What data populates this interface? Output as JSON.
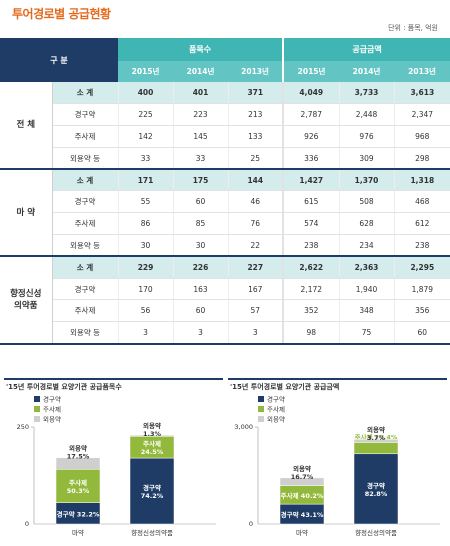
{
  "title": "투어경로별 공급현황",
  "unit": "단위 : 품목, 억원",
  "table": {
    "header_category": "구 분",
    "header_items": "품목수",
    "header_amount": "공급금액",
    "years_items": [
      "2015년",
      "2014년",
      "2013년"
    ],
    "years_amount": [
      "2015년",
      "2014년",
      "2013년"
    ],
    "groups": [
      {
        "name": "전 체",
        "rows": [
          {
            "label": "소 계",
            "total": true,
            "values": [
              "400",
              "401",
              "371",
              "4,049",
              "3,733",
              "3,613"
            ]
          },
          {
            "label": "경구약",
            "values": [
              "225",
              "223",
              "213",
              "2,787",
              "2,448",
              "2,347"
            ]
          },
          {
            "label": "주사제",
            "values": [
              "142",
              "145",
              "133",
              "926",
              "976",
              "968"
            ]
          },
          {
            "label": "외용약 등",
            "values": [
              "33",
              "33",
              "25",
              "336",
              "309",
              "298"
            ]
          }
        ]
      },
      {
        "name": "마 약",
        "rows": [
          {
            "label": "소 계",
            "total": true,
            "values": [
              "171",
              "175",
              "144",
              "1,427",
              "1,370",
              "1,318"
            ]
          },
          {
            "label": "경구약",
            "values": [
              "55",
              "60",
              "46",
              "615",
              "508",
              "468"
            ]
          },
          {
            "label": "주사제",
            "values": [
              "86",
              "85",
              "76",
              "574",
              "628",
              "612"
            ]
          },
          {
            "label": "외용약 등",
            "values": [
              "30",
              "30",
              "22",
              "238",
              "234",
              "238"
            ]
          }
        ]
      },
      {
        "name": "향정신성\n의약품",
        "rows": [
          {
            "label": "소 계",
            "total": true,
            "values": [
              "229",
              "226",
              "227",
              "2,622",
              "2,363",
              "2,295"
            ]
          },
          {
            "label": "경구약",
            "values": [
              "170",
              "163",
              "167",
              "2,172",
              "1,940",
              "1,879"
            ]
          },
          {
            "label": "주사제",
            "values": [
              "56",
              "60",
              "57",
              "352",
              "348",
              "356"
            ]
          },
          {
            "label": "외용약 등",
            "values": [
              "3",
              "3",
              "3",
              "98",
              "75",
              "60"
            ]
          }
        ]
      }
    ]
  },
  "colors": {
    "oral": "#1f3c66",
    "injection": "#93b93c",
    "external": "#cfcfcf",
    "teal": "#3fb6b4",
    "title": "#e46a1c"
  },
  "chart_data": [
    {
      "type": "bar",
      "title": "'15년 투어경로별 요양기관 공급품목수",
      "categories": [
        "마약",
        "향정신성의약품"
      ],
      "legend": [
        "경구약",
        "주사제",
        "외용약"
      ],
      "legend_position": "top-left",
      "ylim": [
        0,
        250
      ],
      "yticks": [
        "0",
        "250"
      ],
      "series": [
        {
          "name": "경구약",
          "values": [
            55,
            170
          ],
          "labels": [
            "경구약 32.2%",
            "경구약\n74.2%"
          ]
        },
        {
          "name": "주사제",
          "values": [
            86,
            56
          ],
          "labels": [
            "주사제\n50.3%",
            "주사제\n24.5%"
          ]
        },
        {
          "name": "외용약",
          "values": [
            30,
            3
          ],
          "labels": [
            "외용약\n17.5%",
            "외용약\n1.3%"
          ]
        }
      ]
    },
    {
      "type": "bar",
      "title": "'15년 투어경로별 요양기관 공급금액",
      "categories": [
        "마약",
        "향정신성의약품"
      ],
      "legend": [
        "경구약",
        "주사제",
        "외용약"
      ],
      "legend_position": "top-left",
      "ylim": [
        0,
        3000
      ],
      "yticks": [
        "0",
        "3,000"
      ],
      "series": [
        {
          "name": "경구약",
          "values": [
            615,
            2172
          ],
          "labels": [
            "경구약 43.1%",
            "경구약\n82.8%"
          ]
        },
        {
          "name": "주사제",
          "values": [
            574,
            352
          ],
          "labels": [
            "주사제 40.2%",
            "주사제 13.4%"
          ]
        },
        {
          "name": "외용약",
          "values": [
            238,
            98
          ],
          "labels": [
            "외용약\n16.7%",
            "외용약\n3.7%"
          ]
        }
      ]
    }
  ]
}
